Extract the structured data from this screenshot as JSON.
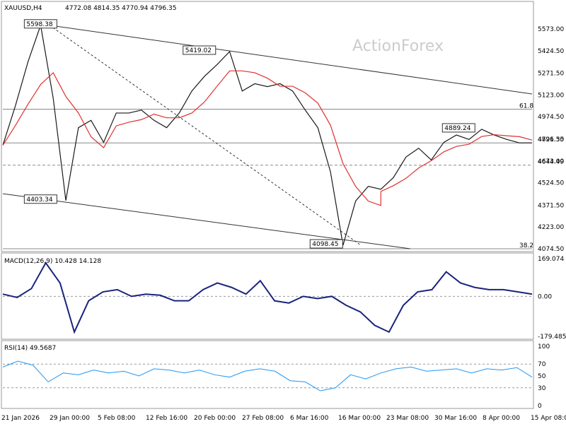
{
  "chart_data": [
    {
      "type": "line",
      "title": "XAUUSD,H4",
      "ohlc_header": "4772.08 4814.35 4770.94 4796.35",
      "watermark": "ActionForex",
      "ylim": [
        4074.5,
        5722.5
      ],
      "yticks": [
        5573.0,
        5424.5,
        5271.5,
        5123.0,
        4974.5,
        4821.5,
        4673.0,
        4524.5,
        4371.5,
        4223.0,
        4074.5
      ],
      "price_series": {
        "name": "Price",
        "x": [
          0,
          6,
          12,
          18,
          24,
          30,
          36,
          42,
          48,
          54,
          60,
          66,
          72,
          78,
          84,
          90,
          96,
          102,
          108,
          114,
          120,
          126,
          132,
          138,
          144,
          150,
          156,
          162,
          168,
          174,
          180
        ],
        "values": [
          4780,
          5050,
          5350,
          5598.38,
          5100,
          4403.34,
          4900,
          4950,
          4800,
          5000,
          5000,
          5020,
          4950,
          4900,
          5000,
          5150,
          5250,
          5330,
          5419.02,
          5150,
          5200,
          5180,
          5200,
          5150,
          5020,
          4900,
          4600,
          4098.45,
          4400,
          4500,
          4480
        ],
        "x2": [
          180,
          186,
          192,
          198,
          204,
          210,
          216,
          222,
          228,
          234,
          240,
          246,
          252
        ],
        "values2": [
          4480,
          4560,
          4700,
          4760,
          4680,
          4800,
          4850,
          4820,
          4889.24,
          4850,
          4820,
          4796.35,
          4796.35
        ]
      },
      "moving_average": {
        "name": "MA",
        "color": "#e03030"
      },
      "levels": [
        {
          "label": "61.8",
          "value": 5026.0
        },
        {
          "label": "4796.35",
          "value": 4796.35
        },
        {
          "label": "4644.49",
          "value": 4644.49
        },
        {
          "label": "38.2",
          "value": 4074.5
        }
      ],
      "annotations": [
        "5598.38",
        "5419.02",
        "4403.34",
        "4098.45",
        "4889.24"
      ]
    },
    {
      "type": "line",
      "label": "MACD(12,26,9) 10.428 14.128",
      "ylim": [
        -179.485,
        169.074
      ],
      "yticks": [
        "169.074",
        "0.00",
        "-179.485"
      ],
      "macd": [
        10,
        -5,
        35,
        150,
        60,
        -160,
        -20,
        20,
        30,
        0,
        10,
        5,
        -20,
        -20,
        30,
        60,
        40,
        10,
        70,
        -20,
        -30,
        0,
        -10,
        0,
        -40,
        -70,
        -130,
        -160,
        -40,
        20,
        30,
        110,
        60,
        40,
        30,
        30,
        20,
        10
      ]
    },
    {
      "type": "line",
      "label": "RSI(14) 49.5687",
      "ylim": [
        0,
        100
      ],
      "yticks": [
        "100",
        "70",
        "50",
        "30",
        "0"
      ],
      "rsi": [
        65,
        75,
        68,
        40,
        55,
        52,
        60,
        55,
        58,
        50,
        62,
        60,
        55,
        60,
        52,
        48,
        58,
        62,
        58,
        42,
        40,
        25,
        30,
        52,
        45,
        55,
        62,
        65,
        58,
        60,
        62,
        55,
        62,
        60,
        64,
        48
      ]
    }
  ],
  "x_ticks": [
    "21 Jan 2026",
    "29 Jan 00:00",
    "5 Feb 08:00",
    "12 Feb 16:00",
    "20 Feb 00:00",
    "27 Feb 08:00",
    "6 Mar 16:00",
    "16 Mar 00:00",
    "23 Mar 08:00",
    "30 Mar 16:00",
    "8 Apr 00:00",
    "15 Apr 08:00"
  ]
}
